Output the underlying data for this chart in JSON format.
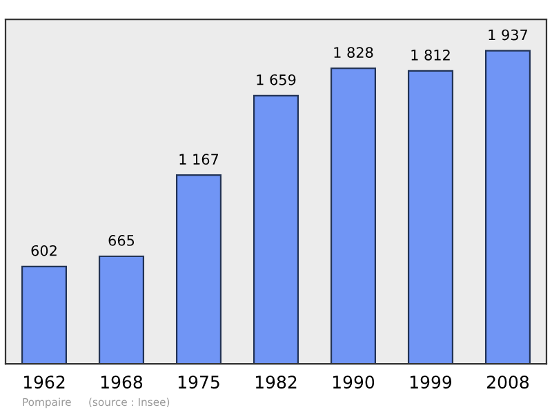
{
  "chart_data": {
    "type": "bar",
    "categories": [
      "1962",
      "1968",
      "1975",
      "1982",
      "1990",
      "1999",
      "2008"
    ],
    "values": [
      602,
      665,
      1167,
      1659,
      1828,
      1812,
      1937
    ],
    "value_labels": [
      "602",
      "665",
      "1 167",
      "1 659",
      "1 828",
      "1 812",
      "1 937"
    ],
    "color": "#7095f5",
    "annotations": [
      "Pompaire",
      "(source : Insee)"
    ],
    "grid": false,
    "legend": false
  }
}
